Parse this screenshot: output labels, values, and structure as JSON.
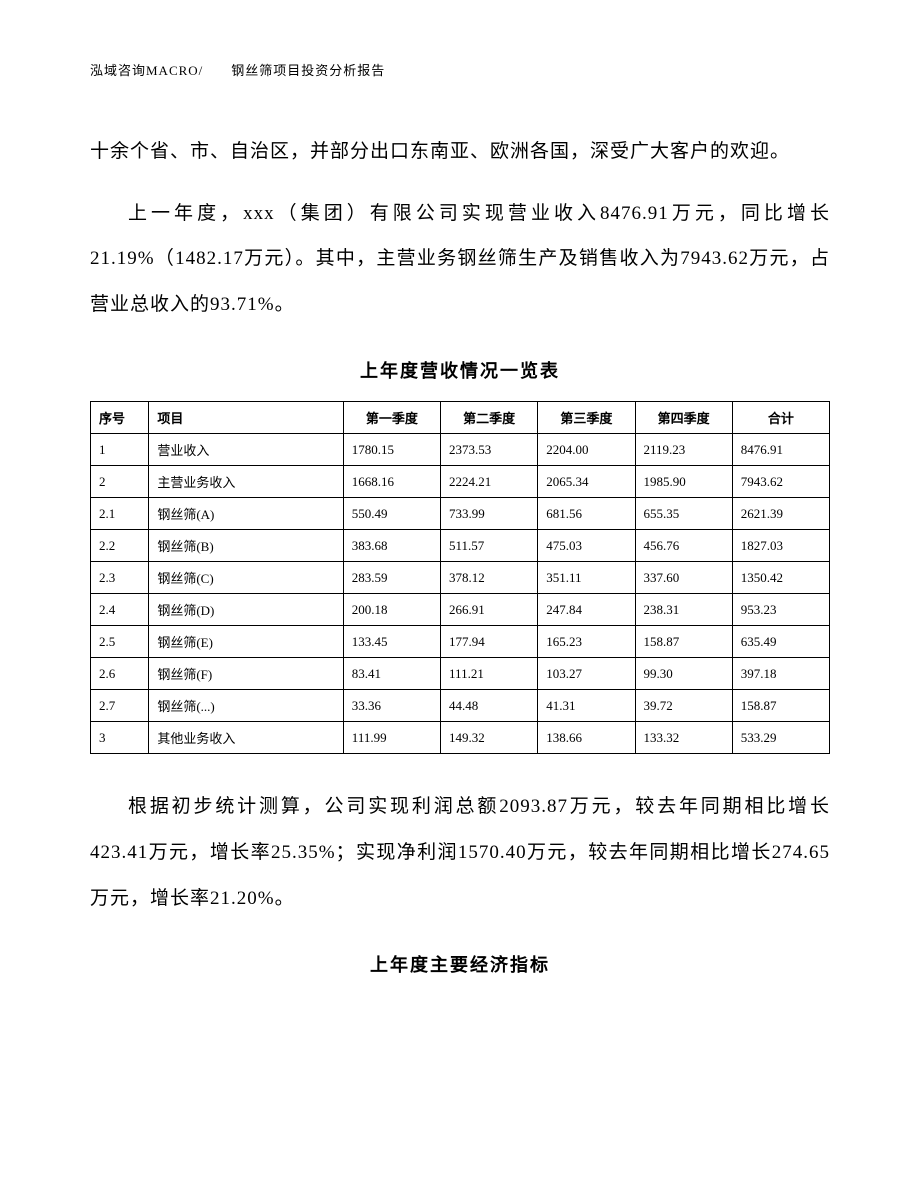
{
  "header": {
    "text": "泓域咨询MACRO/　　钢丝筛项目投资分析报告"
  },
  "paragraphs": {
    "p1": "十余个省、市、自治区，并部分出口东南亚、欧洲各国，深受广大客户的欢迎。",
    "p2": "上一年度，xxx（集团）有限公司实现营业收入8476.91万元，同比增长21.19%（1482.17万元）。其中，主营业务钢丝筛生产及销售收入为7943.62万元，占营业总收入的93.71%。",
    "p3": "根据初步统计测算，公司实现利润总额2093.87万元，较去年同期相比增长423.41万元，增长率25.35%；实现净利润1570.40万元，较去年同期相比增长274.65万元，增长率21.20%。"
  },
  "table1": {
    "title": "上年度营收情况一览表",
    "headers": {
      "seq": "序号",
      "item": "项目",
      "q1": "第一季度",
      "q2": "第二季度",
      "q3": "第三季度",
      "q4": "第四季度",
      "total": "合计"
    },
    "rows": [
      {
        "seq": "1",
        "item": "营业收入",
        "q1": "1780.15",
        "q2": "2373.53",
        "q3": "2204.00",
        "q4": "2119.23",
        "total": "8476.91"
      },
      {
        "seq": "2",
        "item": "主营业务收入",
        "q1": "1668.16",
        "q2": "2224.21",
        "q3": "2065.34",
        "q4": "1985.90",
        "total": "7943.62"
      },
      {
        "seq": "2.1",
        "item": "钢丝筛(A)",
        "q1": "550.49",
        "q2": "733.99",
        "q3": "681.56",
        "q4": "655.35",
        "total": "2621.39"
      },
      {
        "seq": "2.2",
        "item": "钢丝筛(B)",
        "q1": "383.68",
        "q2": "511.57",
        "q3": "475.03",
        "q4": "456.76",
        "total": "1827.03"
      },
      {
        "seq": "2.3",
        "item": "钢丝筛(C)",
        "q1": "283.59",
        "q2": "378.12",
        "q3": "351.11",
        "q4": "337.60",
        "total": "1350.42"
      },
      {
        "seq": "2.4",
        "item": "钢丝筛(D)",
        "q1": "200.18",
        "q2": "266.91",
        "q3": "247.84",
        "q4": "238.31",
        "total": "953.23"
      },
      {
        "seq": "2.5",
        "item": "钢丝筛(E)",
        "q1": "133.45",
        "q2": "177.94",
        "q3": "165.23",
        "q4": "158.87",
        "total": "635.49"
      },
      {
        "seq": "2.6",
        "item": "钢丝筛(F)",
        "q1": "83.41",
        "q2": "111.21",
        "q3": "103.27",
        "q4": "99.30",
        "total": "397.18"
      },
      {
        "seq": "2.7",
        "item": "钢丝筛(...)",
        "q1": "33.36",
        "q2": "44.48",
        "q3": "41.31",
        "q4": "39.72",
        "total": "158.87"
      },
      {
        "seq": "3",
        "item": "其他业务收入",
        "q1": "111.99",
        "q2": "149.32",
        "q3": "138.66",
        "q4": "133.32",
        "total": "533.29"
      }
    ]
  },
  "table2": {
    "title": "上年度主要经济指标"
  },
  "styles": {
    "body_font_size": 19,
    "header_font_size": 13,
    "table_font_size": 13,
    "table_title_font_size": 18,
    "text_color": "#000000",
    "background_color": "#ffffff",
    "border_color": "#000000",
    "line_height": 2.4
  }
}
